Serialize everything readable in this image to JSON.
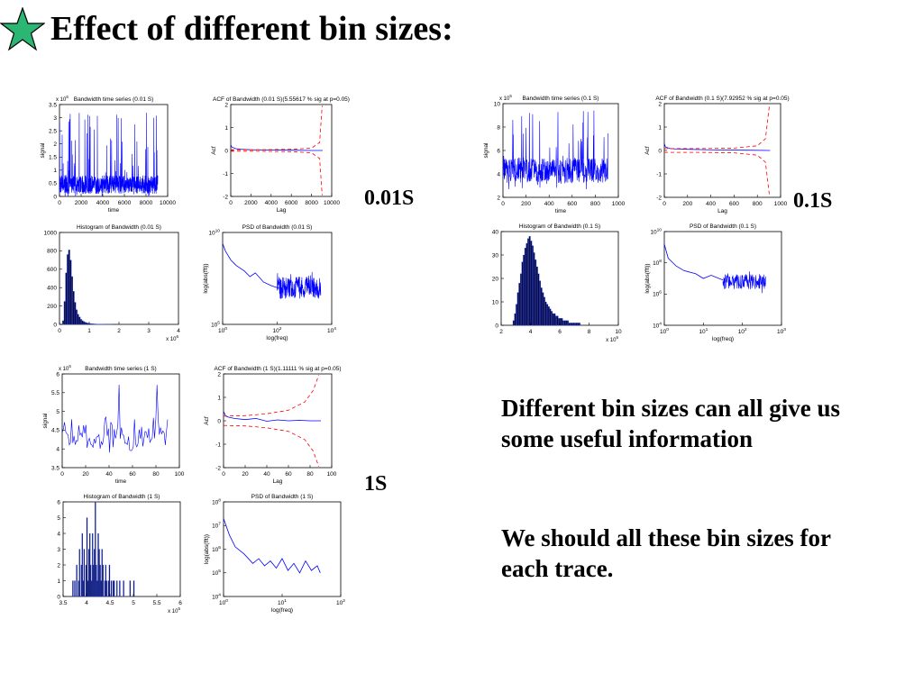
{
  "slide": {
    "title": "Effect of different bin sizes:",
    "star_color": "#2bb673",
    "bin_labels": [
      "0.01S",
      "0.1S",
      "1S"
    ],
    "notes": [
      "Different bin sizes can all give us some useful information",
      "We should all these bin sizes for each trace."
    ]
  },
  "chart_data": [
    {
      "id": "ts-001",
      "type": "line",
      "group": "0.01S",
      "title": "Bandwidth time series (0.01 S)",
      "xlabel": "time",
      "ylabel": "signal",
      "xlim": [
        0,
        10000
      ],
      "ylim": [
        0,
        3.5
      ],
      "xticks": [
        "0",
        "2000",
        "4000",
        "6000",
        "8000",
        "10000"
      ],
      "yticks": [
        "0",
        "0.5",
        "1",
        "1.5",
        "2",
        "2.5",
        "3",
        "3.5"
      ],
      "multiplier": "x 10^6",
      "series": [
        {
          "color": "#0000ff",
          "x": [
            0,
            9100
          ],
          "noise": {
            "base": 0.45,
            "spread": 0.35,
            "peak": 3.2,
            "points": 700
          }
        }
      ]
    },
    {
      "id": "acf-001",
      "type": "line",
      "group": "0.01S",
      "title": "ACF of Bandwidth (0.01 S)(5.55617 % sig at p=0.05)",
      "xlabel": "Lag",
      "ylabel": "Acf",
      "xlim": [
        0,
        10000
      ],
      "ylim": [
        -2,
        2
      ],
      "xticks": [
        "0",
        "2000",
        "4000",
        "6000",
        "8000",
        "10000"
      ],
      "yticks": [
        "-2",
        "-1",
        "0",
        "1",
        "2"
      ],
      "series": [
        {
          "color": "#0000ff",
          "x": [
            0,
            100,
            500,
            1000,
            2000,
            4000,
            6000,
            8000,
            9100
          ],
          "y": [
            0.25,
            0.15,
            0.08,
            0.05,
            0.03,
            0.02,
            0.01,
            0.0,
            0.0
          ]
        },
        {
          "color": "#ff0000",
          "dashed": true,
          "x": [
            0,
            2000,
            4000,
            6000,
            8000,
            8800,
            9050
          ],
          "y": [
            0.03,
            0.03,
            0.04,
            0.05,
            0.1,
            0.35,
            1.95
          ]
        },
        {
          "color": "#ff0000",
          "dashed": true,
          "x": [
            0,
            2000,
            4000,
            6000,
            8000,
            8800,
            9050
          ],
          "y": [
            -0.03,
            -0.03,
            -0.04,
            -0.05,
            -0.1,
            -0.35,
            -1.95
          ]
        }
      ]
    },
    {
      "id": "hist-001",
      "type": "bar",
      "group": "0.01S",
      "title": "Histogram of Bandwidth (0.01 S)",
      "xlabel": "",
      "ylabel": "",
      "xlim": [
        0,
        4
      ],
      "ylim": [
        0,
        1000
      ],
      "xticks": [
        "0",
        "1",
        "2",
        "3",
        "4"
      ],
      "yticks": [
        "0",
        "200",
        "400",
        "600",
        "800",
        "1000"
      ],
      "multiplier": "x 10^6",
      "bars": {
        "color": "#0a0a40",
        "start": 0.1,
        "width": 0.05,
        "values": [
          40,
          250,
          560,
          760,
          810,
          700,
          520,
          360,
          240,
          160,
          110,
          80,
          55,
          40,
          30,
          22,
          16,
          12,
          9,
          7,
          6,
          5,
          4,
          3,
          3,
          2,
          2,
          2,
          1,
          1,
          1,
          1,
          1
        ]
      }
    },
    {
      "id": "psd-001",
      "type": "line",
      "group": "0.01S",
      "title": "PSD of Bandwidth (0.01 S)",
      "xlabel": "log(freq)",
      "ylabel": "log(abs(fft))",
      "xscale": "log",
      "yscale": "log",
      "xlim": [
        0,
        4
      ],
      "ylim": [
        5,
        10
      ],
      "xticks": [
        "10^0",
        "10^2",
        "10^4"
      ],
      "yticks": [
        "10^5",
        "10^10"
      ],
      "series": [
        {
          "color": "#0000ff",
          "x": [
            0.0,
            0.1,
            0.3,
            0.5,
            0.8,
            1.0,
            1.2,
            1.5,
            1.8,
            2.0,
            2.2
          ],
          "y": [
            9.4,
            9.0,
            8.5,
            8.2,
            7.9,
            7.6,
            7.8,
            7.3,
            7.1,
            7.0,
            6.9
          ]
        },
        {
          "color": "#0000ff",
          "x": [
            2.0,
            3.6
          ],
          "noise": {
            "base": 7.0,
            "spread": 0.6,
            "peak": 7.9,
            "points": 220
          }
        }
      ]
    },
    {
      "id": "ts-01",
      "type": "line",
      "group": "0.1S",
      "title": "Bandwidth time series (0.1 S)",
      "xlabel": "time",
      "ylabel": "signal",
      "xlim": [
        0,
        1000
      ],
      "ylim": [
        2,
        10
      ],
      "xticks": [
        "0",
        "200",
        "400",
        "600",
        "800",
        "1000"
      ],
      "yticks": [
        "2",
        "4",
        "6",
        "8",
        "10"
      ],
      "multiplier": "x 10^5",
      "series": [
        {
          "color": "#0000ff",
          "x": [
            0,
            910
          ],
          "noise": {
            "base": 4.3,
            "spread": 1.1,
            "peak": 9.5,
            "points": 450
          }
        }
      ]
    },
    {
      "id": "acf-01",
      "type": "line",
      "group": "0.1S",
      "title": "ACF of Bandwidth (0.1 S)(7.92952 % sig at p=0.05)",
      "xlabel": "Lag",
      "ylabel": "Acf",
      "xlim": [
        0,
        1000
      ],
      "ylim": [
        -2,
        2
      ],
      "xticks": [
        "0",
        "200",
        "400",
        "600",
        "800",
        "1000"
      ],
      "yticks": [
        "-2",
        "-1",
        "0",
        "1",
        "2"
      ],
      "series": [
        {
          "color": "#0000ff",
          "x": [
            0,
            10,
            50,
            100,
            300,
            500,
            700,
            910
          ],
          "y": [
            0.3,
            0.15,
            0.08,
            0.06,
            0.04,
            0.02,
            0.01,
            0.0
          ]
        },
        {
          "color": "#ff0000",
          "dashed": true,
          "x": [
            0,
            300,
            600,
            800,
            870,
            905
          ],
          "y": [
            0.08,
            0.08,
            0.1,
            0.2,
            0.5,
            1.95
          ]
        },
        {
          "color": "#ff0000",
          "dashed": true,
          "x": [
            0,
            300,
            600,
            800,
            870,
            905
          ],
          "y": [
            -0.08,
            -0.08,
            -0.1,
            -0.2,
            -0.5,
            -1.95
          ]
        }
      ]
    },
    {
      "id": "hist-01",
      "type": "bar",
      "group": "0.1S",
      "title": "Histogram of Bandwidth (0.1 S)",
      "xlabel": "",
      "ylabel": "",
      "xlim": [
        2,
        10
      ],
      "ylim": [
        0,
        40
      ],
      "xticks": [
        "2",
        "4",
        "6",
        "8",
        "10"
      ],
      "yticks": [
        "0",
        "10",
        "20",
        "30",
        "40"
      ],
      "multiplier": "x 10^5",
      "bars": {
        "color": "#0a0a40",
        "start": 2.8,
        "width": 0.1,
        "values": [
          2,
          5,
          9,
          14,
          18,
          22,
          27,
          30,
          33,
          35,
          37,
          38,
          36,
          34,
          31,
          28,
          25,
          22,
          19,
          16,
          14,
          12,
          10,
          9,
          8,
          7,
          6,
          5,
          5,
          4,
          4,
          3,
          3,
          3,
          2,
          2,
          2,
          2,
          1,
          1,
          1,
          1,
          1,
          1,
          1,
          1
        ]
      }
    },
    {
      "id": "psd-01",
      "type": "line",
      "group": "0.1S",
      "title": "PSD of Bandwidth (0.1 S)",
      "xlabel": "log(freq)",
      "ylabel": "log(abs(fft))",
      "xscale": "log",
      "yscale": "log",
      "xlim": [
        0,
        3
      ],
      "ylim": [
        4,
        10
      ],
      "xticks": [
        "10^0",
        "10^1",
        "10^2",
        "10^3"
      ],
      "yticks": [
        "10^4",
        "10^6",
        "10^8",
        "10^10"
      ],
      "series": [
        {
          "color": "#0000ff",
          "x": [
            0.0,
            0.1,
            0.3,
            0.5,
            0.8,
            1.0,
            1.2,
            1.5
          ],
          "y": [
            9.2,
            8.3,
            7.8,
            7.5,
            7.3,
            7.0,
            7.2,
            6.9
          ]
        },
        {
          "color": "#0000ff",
          "x": [
            1.5,
            2.6
          ],
          "noise": {
            "base": 6.8,
            "spread": 0.5,
            "peak": 7.6,
            "points": 140
          }
        }
      ]
    },
    {
      "id": "ts-1",
      "type": "line",
      "group": "1S",
      "title": "Bandwidth time series (1 S)",
      "xlabel": "time",
      "ylabel": "signal",
      "xlim": [
        0,
        100
      ],
      "ylim": [
        3.5,
        6
      ],
      "xticks": [
        "0",
        "20",
        "40",
        "60",
        "80",
        "100"
      ],
      "yticks": [
        "3.5",
        "4",
        "4.5",
        "5",
        "5.5",
        "6"
      ],
      "multiplier": "x 10^5",
      "series": [
        {
          "color": "#0000ff",
          "x": [
            0,
            90
          ],
          "noise": {
            "base": 4.4,
            "spread": 0.45,
            "peak": 5.75,
            "points": 90
          }
        }
      ]
    },
    {
      "id": "acf-1",
      "type": "line",
      "group": "1S",
      "title": "ACF of Bandwidth (1 S)(1.11111 % sig at p=0.05)",
      "xlabel": "Lag",
      "ylabel": "Acf",
      "xlim": [
        0,
        100
      ],
      "ylim": [
        -2,
        2
      ],
      "xticks": [
        "0",
        "20",
        "40",
        "60",
        "80",
        "100"
      ],
      "yticks": [
        "-2",
        "-1",
        "0",
        "1",
        "2"
      ],
      "series": [
        {
          "color": "#0000ff",
          "x": [
            0,
            2,
            5,
            10,
            20,
            30,
            40,
            50,
            60,
            70,
            80,
            90
          ],
          "y": [
            0.4,
            0.2,
            0.15,
            0.1,
            0.05,
            0.1,
            -0.02,
            0.04,
            0.0,
            0.02,
            0.0,
            0.0
          ]
        },
        {
          "color": "#ff0000",
          "dashed": true,
          "x": [
            0,
            20,
            40,
            60,
            75,
            83,
            88
          ],
          "y": [
            0.2,
            0.22,
            0.3,
            0.45,
            0.8,
            1.3,
            1.95
          ]
        },
        {
          "color": "#ff0000",
          "dashed": true,
          "x": [
            0,
            20,
            40,
            60,
            75,
            83,
            88
          ],
          "y": [
            -0.2,
            -0.22,
            -0.3,
            -0.45,
            -0.8,
            -1.3,
            -1.95
          ]
        }
      ]
    },
    {
      "id": "hist-1",
      "type": "bar",
      "group": "1S",
      "title": "Histogram of Bandwidth (1 S)",
      "xlabel": "",
      "ylabel": "",
      "xlim": [
        3.5,
        6
      ],
      "ylim": [
        0,
        6
      ],
      "xticks": [
        "3.5",
        "4",
        "4.5",
        "5",
        "5.5",
        "6"
      ],
      "yticks": [
        "0",
        "1",
        "2",
        "3",
        "4",
        "5",
        "6"
      ],
      "multiplier": "x 10^5",
      "bars": {
        "color": "#0a0a40",
        "start": 3.7,
        "width": 0.02,
        "values": [
          1,
          0,
          1,
          0,
          2,
          0,
          1,
          3,
          0,
          2,
          4,
          1,
          3,
          0,
          2,
          5,
          1,
          3,
          4,
          2,
          1,
          4,
          2,
          3,
          6,
          2,
          1,
          4,
          3,
          2,
          1,
          3,
          2,
          0,
          1,
          2,
          1,
          0,
          1,
          2,
          0,
          1,
          0,
          1,
          1,
          0,
          0,
          1,
          0,
          0,
          1,
          0,
          0,
          0,
          1,
          0,
          0,
          0,
          0,
          0,
          0,
          1,
          0,
          0,
          0,
          1
        ]
      }
    },
    {
      "id": "psd-1",
      "type": "line",
      "group": "1S",
      "title": "PSD of Bandwidth (1 S)",
      "xlabel": "log(freq)",
      "ylabel": "log(abs(fft))",
      "xscale": "log",
      "yscale": "log",
      "xlim": [
        0,
        2
      ],
      "ylim": [
        4,
        8
      ],
      "xticks": [
        "10^0",
        "10^1",
        "10^2"
      ],
      "yticks": [
        "10^4",
        "10^5",
        "10^6",
        "10^7",
        "10^8"
      ],
      "series": [
        {
          "color": "#0000ff",
          "x": [
            0.0,
            0.1,
            0.2,
            0.35,
            0.5,
            0.6,
            0.7,
            0.8,
            0.9,
            1.0,
            1.1,
            1.2,
            1.3,
            1.4,
            1.5,
            1.6,
            1.65
          ],
          "y": [
            7.3,
            6.6,
            6.1,
            5.8,
            5.4,
            5.6,
            5.3,
            5.5,
            5.2,
            5.6,
            5.1,
            5.4,
            5.0,
            5.5,
            5.1,
            5.3,
            5.0
          ]
        }
      ]
    }
  ]
}
